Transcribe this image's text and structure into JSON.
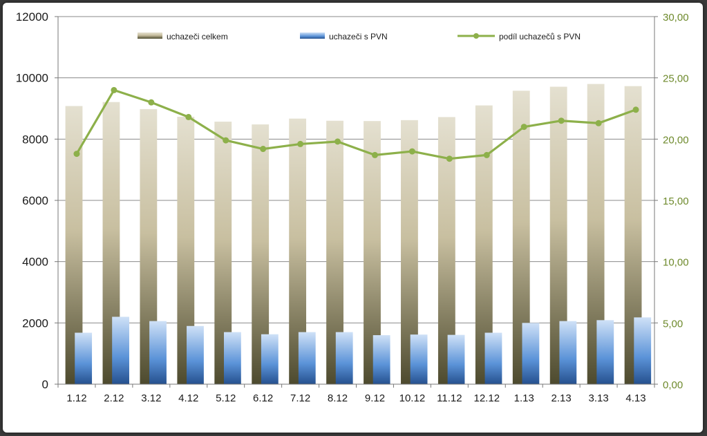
{
  "chart_data": {
    "type": "bar",
    "categories": [
      "1.12",
      "2.12",
      "3.12",
      "4.12",
      "5.12",
      "6.12",
      "7.12",
      "8.12",
      "9.12",
      "10.12",
      "11.12",
      "12.12",
      "1.13",
      "2.13",
      "3.13",
      "4.13"
    ],
    "series": [
      {
        "name": "uchazeči celkem",
        "type": "bar",
        "axis": "left",
        "values": [
          9080,
          9210,
          8980,
          8730,
          8570,
          8480,
          8670,
          8600,
          8590,
          8620,
          8720,
          9100,
          9580,
          9710,
          9800,
          9730
        ]
      },
      {
        "name": "uchazeči s PVN",
        "type": "bar",
        "axis": "left",
        "values": [
          1680,
          2200,
          2060,
          1900,
          1700,
          1630,
          1700,
          1700,
          1600,
          1620,
          1610,
          1680,
          2000,
          2060,
          2090,
          2180
        ]
      },
      {
        "name": "podíl uchazečů s PVN",
        "type": "line",
        "axis": "right",
        "values": [
          18.8,
          24.0,
          23.0,
          21.8,
          19.9,
          19.2,
          19.6,
          19.8,
          18.7,
          19.0,
          18.4,
          18.7,
          21.0,
          21.5,
          21.3,
          22.4
        ]
      }
    ],
    "y_left": {
      "range": [
        0,
        12000
      ],
      "ticks": [
        "0",
        "2000",
        "4000",
        "6000",
        "8000",
        "10000",
        "12000"
      ]
    },
    "y_right": {
      "range": [
        0,
        30
      ],
      "ticks": [
        "0,00",
        "5,00",
        "10,00",
        "15,00",
        "20,00",
        "25,00",
        "30,00"
      ]
    },
    "grid": true,
    "legend": "top-center",
    "colors": {
      "bar_total_top": "#e4e0d0",
      "bar_total_bottom": "#4d4a2e",
      "bar_pvn_top": "#cfe1f7",
      "bar_pvn_bottom": "#25508e",
      "line": "#8db04a",
      "right_axis_text": "#6e8a2c"
    }
  }
}
